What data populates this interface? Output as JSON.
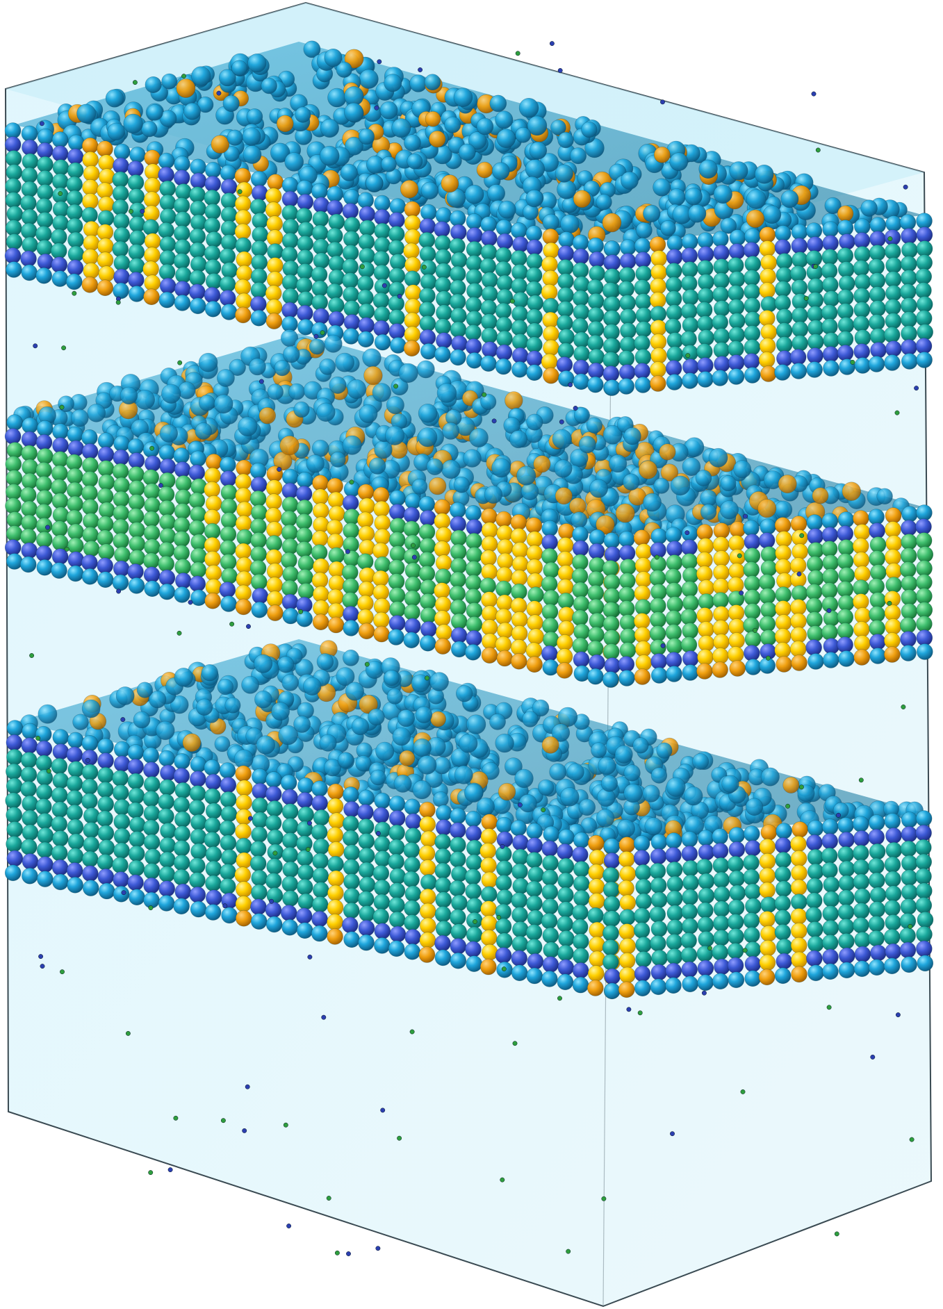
{
  "scene": {
    "subject": "stacked-lipid-bilayers-in-water-box",
    "colors": {
      "background": "#ffffff",
      "water": "#cdeffa",
      "water_edge": "#3a4a52",
      "headgroup": "#1fa6dc",
      "headgroup_dark": "#0f6f9a",
      "phosphate": "#3d5ad6",
      "tail_teal": "#1aa89c",
      "tail_teal_dark": "#0f7f78",
      "tail_green": "#3fbf6e",
      "tail_green_dark": "#1f8f45",
      "cholesterol": "#ffd000",
      "cholesterol_head": "#f0a010",
      "ion_green": "#2e9e3e",
      "ion_blue": "#2b3fb0"
    },
    "bilayers": [
      {
        "tail_color": "teal",
        "cholesterol_fraction": 0.18
      },
      {
        "tail_color": "green",
        "cholesterol_fraction": 0.32
      },
      {
        "tail_color": "teal",
        "cholesterol_fraction": 0.14
      }
    ]
  }
}
